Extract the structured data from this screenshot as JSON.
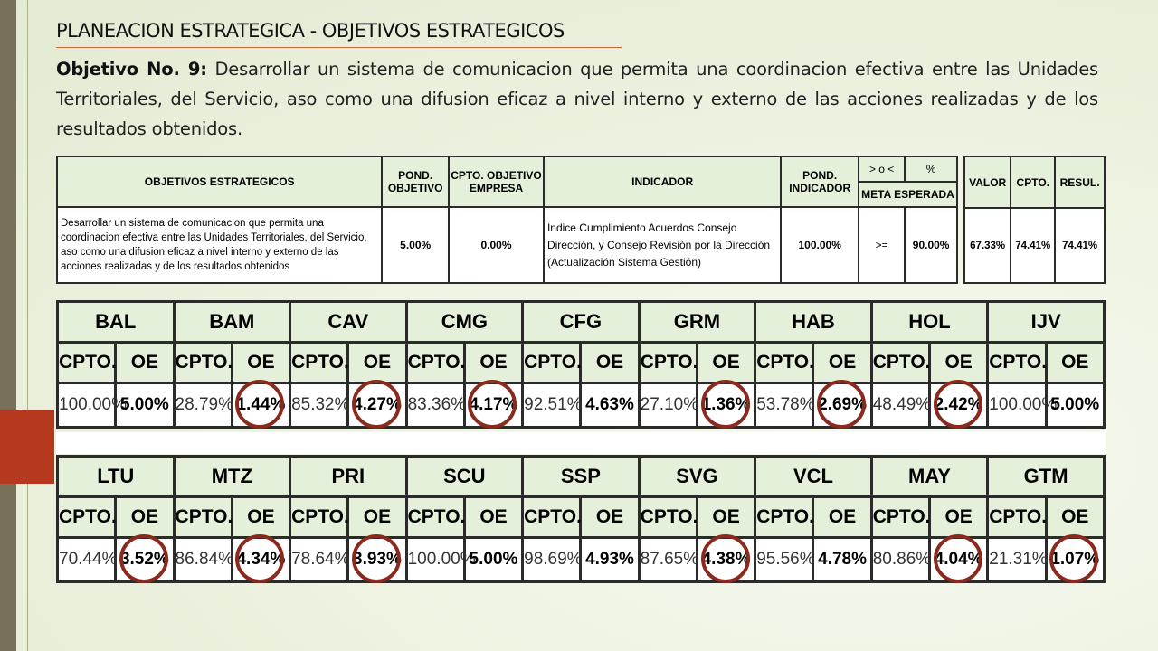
{
  "title": "PLANEACION ESTRATEGICA - OBJETIVOS ESTRATEGICOS",
  "objective": {
    "label": "Objetivo No. 9:",
    "text": "Desarrollar un sistema de comunicacion que permita  una coordinacion efectiva entre las Unidades Territoriales, del Servicio, aso como una  difusion  eficaz a nivel interno y externo de las acciones realizadas y de los resultados obtenidos."
  },
  "summary": {
    "headers": {
      "objetivos": "OBJETIVOS ESTRATEGICOS",
      "pond_objetivo": "POND. OBJETIVO",
      "cpto_objetivo": "CPTO. OBJETIVO EMPRESA",
      "indicador": "INDICADOR",
      "pond_indicador": "POND. INDICADOR",
      "comparator": "> o <",
      "percent": "%",
      "meta": "META ESPERADA"
    },
    "row": {
      "objetivo": "Desarrollar un sistema de comunicacion que permita una coordinacion efectiva entre las Unidades Territoriales, del Servicio, aso como una difusion eficaz a nivel interno y externo de las acciones realizadas y de los resultados obtenidos",
      "pond_objetivo": "5.00%",
      "cpto_objetivo": "0.00%",
      "indicador": "Indice Cumplimiento Acuerdos Consejo Dirección, y Consejo Revisión por la Dirección (Actualización Sistema Gestión)",
      "pond_indicador": "100.00%",
      "comparator": ">=",
      "meta": "90.00%"
    }
  },
  "results": {
    "headers": {
      "valor": "VALOR",
      "cpto": "CPTO.",
      "resul": "RESUL."
    },
    "row": {
      "valor": "67.33%",
      "cpto": "74.41%",
      "resul": "74.41%"
    }
  },
  "units_labels": {
    "cpto": "CPTO.",
    "oe": "OE"
  },
  "units_row1": [
    {
      "name": "BAL",
      "cpto": "100.00%",
      "oe": "5.00%",
      "circled": false
    },
    {
      "name": "BAM",
      "cpto": "28.79%",
      "oe": "1.44%",
      "circled": true
    },
    {
      "name": "CAV",
      "cpto": "85.32%",
      "oe": "4.27%",
      "circled": true
    },
    {
      "name": "CMG",
      "cpto": "83.36%",
      "oe": "4.17%",
      "circled": true
    },
    {
      "name": "CFG",
      "cpto": "92.51%",
      "oe": "4.63%",
      "circled": false
    },
    {
      "name": "GRM",
      "cpto": "27.10%",
      "oe": "1.36%",
      "circled": true
    },
    {
      "name": "HAB",
      "cpto": "53.78%",
      "oe": "2.69%",
      "circled": true
    },
    {
      "name": "HOL",
      "cpto": "48.49%",
      "oe": "2.42%",
      "circled": true
    },
    {
      "name": "IJV",
      "cpto": "100.00%",
      "oe": "5.00%",
      "circled": false
    }
  ],
  "units_row2": [
    {
      "name": "LTU",
      "cpto": "70.44%",
      "oe": "3.52%",
      "circled": true
    },
    {
      "name": "MTZ",
      "cpto": "86.84%",
      "oe": "4.34%",
      "circled": true
    },
    {
      "name": "PRI",
      "cpto": "78.64%",
      "oe": "3.93%",
      "circled": true
    },
    {
      "name": "SCU",
      "cpto": "100.00%",
      "oe": "5.00%",
      "circled": false
    },
    {
      "name": "SSP",
      "cpto": "98.69%",
      "oe": "4.93%",
      "circled": false
    },
    {
      "name": "SVG",
      "cpto": "87.65%",
      "oe": "4.38%",
      "circled": true
    },
    {
      "name": "VCL",
      "cpto": "95.56%",
      "oe": "4.78%",
      "circled": false
    },
    {
      "name": "MAY",
      "cpto": "80.86%",
      "oe": "4.04%",
      "circled": true
    },
    {
      "name": "GTM",
      "cpto": "21.31%",
      "oe": "1.07%",
      "circled": true
    }
  ]
}
